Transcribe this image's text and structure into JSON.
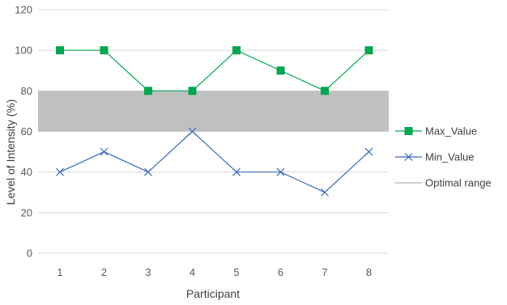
{
  "chart_data": {
    "type": "line",
    "xlabel": "Participant",
    "ylabel": "Level of Intensity (%)",
    "x": [
      1,
      2,
      3,
      4,
      5,
      6,
      7,
      8
    ],
    "ylim": [
      0,
      120
    ],
    "yticks": [
      0,
      20,
      40,
      60,
      80,
      100,
      120
    ],
    "grid": "horizontal",
    "legend": "right",
    "series": [
      {
        "name": "Max_Value",
        "values": [
          100,
          100,
          80,
          80,
          100,
          90,
          80,
          100
        ],
        "color": "#00a651",
        "marker": "square"
      },
      {
        "name": "Min_Value",
        "values": [
          40,
          50,
          40,
          60,
          40,
          40,
          30,
          50
        ],
        "color": "#3a6bbf",
        "marker": "x"
      }
    ],
    "band": {
      "name": "Optimal range",
      "from": 60,
      "to": 80,
      "color": "#c0c0c0"
    }
  }
}
